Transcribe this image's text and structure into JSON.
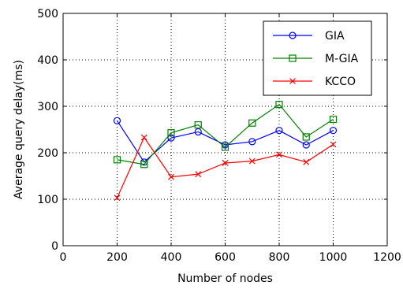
{
  "chart_data": {
    "type": "line",
    "title": "",
    "xlabel": "Number of nodes",
    "ylabel": "Average query delay(ms)",
    "xlim": [
      0,
      1200
    ],
    "ylim": [
      0,
      500
    ],
    "xticks": [
      0,
      200,
      400,
      600,
      800,
      1000,
      1200
    ],
    "yticks": [
      0,
      100,
      200,
      300,
      400,
      500
    ],
    "grid": true,
    "legend_position": "top-right",
    "x": [
      200,
      300,
      400,
      500,
      600,
      700,
      800,
      900,
      1000
    ],
    "series": [
      {
        "name": "GIA",
        "color": "#0000ff",
        "marker": "circle",
        "values": [
          269,
          180,
          232,
          245,
          217,
          224,
          248,
          217,
          248
        ]
      },
      {
        "name": "M-GIA",
        "color": "#008000",
        "marker": "square",
        "values": [
          185,
          175,
          243,
          260,
          212,
          264,
          304,
          234,
          272
        ]
      },
      {
        "name": "KCCO",
        "color": "#ff0000",
        "marker": "x",
        "values": [
          103,
          233,
          148,
          154,
          178,
          182,
          196,
          180,
          218
        ]
      }
    ]
  }
}
